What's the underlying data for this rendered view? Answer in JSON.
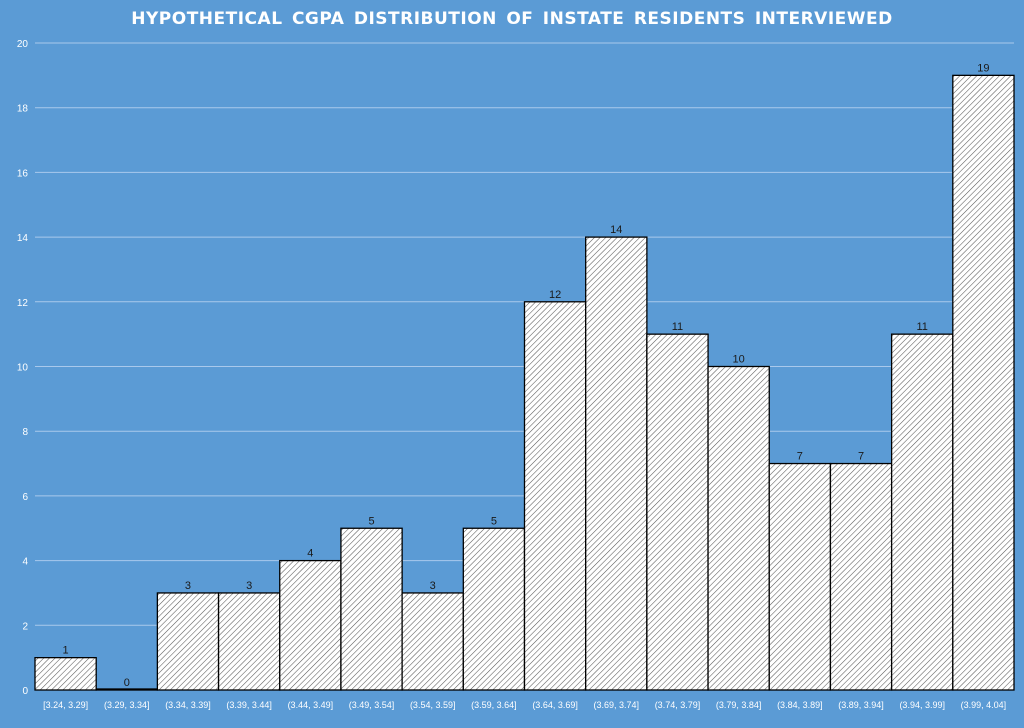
{
  "chart_data": {
    "type": "bar",
    "title": "HYPOTHETICAL  CGPA DISTRIBUTION  OF INSTATE  RESIDENTS  INTERVIEWED",
    "categories": [
      "[3.24, 3.29]",
      "(3.29, 3.34]",
      "(3.34, 3.39]",
      "(3.39, 3.44]",
      "(3.44, 3.49]",
      "(3.49, 3.54]",
      "(3.54, 3.59]",
      "(3.59, 3.64]",
      "(3.64, 3.69]",
      "(3.69, 3.74]",
      "(3.74, 3.79]",
      "(3.79, 3.84]",
      "(3.84, 3.89]",
      "(3.89, 3.94]",
      "(3.94, 3.99]",
      "(3.99, 4.04]"
    ],
    "values": [
      1,
      0,
      3,
      3,
      4,
      5,
      3,
      5,
      12,
      14,
      11,
      10,
      7,
      7,
      11,
      19
    ],
    "ylim": [
      0,
      20
    ],
    "yticks": [
      0,
      2,
      4,
      6,
      8,
      10,
      12,
      14,
      16,
      18,
      20
    ],
    "grid": true,
    "data_labels": true,
    "xlabel": "",
    "ylabel": "",
    "colors": {
      "background": "#5b9bd5",
      "bar_fill": "#ffffff",
      "hatch": "#5a5a5a",
      "bar_edge": "#000000",
      "gridline": "#a9c9ec",
      "tick_label": "#ffffff",
      "data_label": "#1a1a1a"
    },
    "bar_pattern": "diagonal-hatch"
  }
}
